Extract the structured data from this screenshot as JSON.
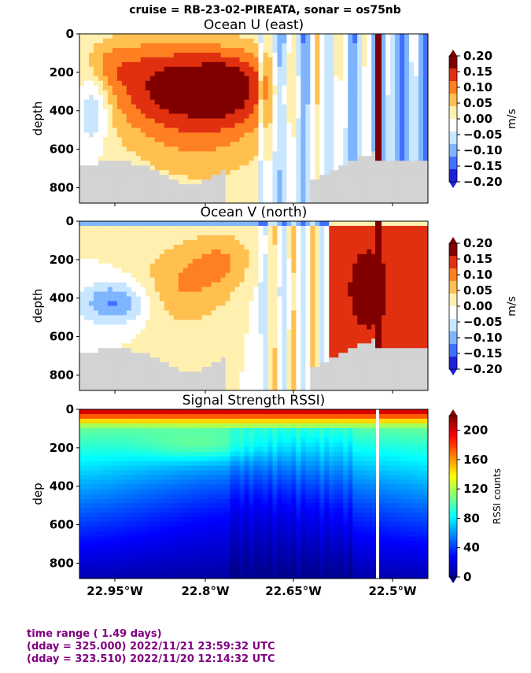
{
  "suptitle": "cruise = RB-23-02-PIREATA,  sonar = os75nb",
  "footer": {
    "line1": "time range ( 1.49 days)",
    "line2": "(dday = 325.000) 2022/11/21 23:59:32 UTC",
    "line3": "(dday = 323.510) 2022/11/20 12:14:32 UTC"
  },
  "colors": {
    "jet": [
      "#00008f",
      "#0000ff",
      "#0080ff",
      "#00ffff",
      "#80ff80",
      "#ffff00",
      "#ff8000",
      "#ff0000",
      "#800000"
    ],
    "diverging": [
      "#2020d8",
      "#4070ff",
      "#7fb4ff",
      "#c8e6ff",
      "#ffffff",
      "#fff0b0",
      "#ffc050",
      "#ff8020",
      "#e03010",
      "#800000"
    ],
    "bathymetry": "#d3d3d3",
    "footer_text": "#800080"
  },
  "chart_data": [
    {
      "type": "heatmap",
      "title": "Ocean U (east)",
      "ylabel": "depth",
      "ylim": [
        880,
        0
      ],
      "yticks": [
        "0",
        "200",
        "400",
        "600",
        "800"
      ],
      "xticks": [
        "22.95°W",
        "22.8°W",
        "22.65°W",
        "22.5°W"
      ],
      "colorbar_label": "m/s",
      "colorbar_ticks": [
        "0.20",
        "0.15",
        "0.10",
        "0.05",
        "0.00",
        "−0.05",
        "−0.10",
        "−0.15",
        "−0.20"
      ],
      "vmin": -0.2,
      "vmax": 0.2,
      "colormap": "diverging"
    },
    {
      "type": "heatmap",
      "title": "Ocean V (north)",
      "ylabel": "depth",
      "ylim": [
        880,
        0
      ],
      "yticks": [
        "0",
        "200",
        "400",
        "600",
        "800"
      ],
      "xticks": [
        "22.95°W",
        "22.8°W",
        "22.65°W",
        "22.5°W"
      ],
      "colorbar_label": "m/s",
      "colorbar_ticks": [
        "0.20",
        "0.15",
        "0.10",
        "0.05",
        "0.00",
        "−0.05",
        "−0.10",
        "−0.15",
        "−0.20"
      ],
      "vmin": -0.2,
      "vmax": 0.2,
      "colormap": "diverging"
    },
    {
      "type": "heatmap",
      "title": "Signal Strength RSSI)",
      "ylabel": "dep",
      "ylim": [
        880,
        0
      ],
      "yticks": [
        "0",
        "200",
        "400",
        "600",
        "800"
      ],
      "xticks": [
        "22.95°W",
        "22.8°W",
        "22.65°W",
        "22.5°W"
      ],
      "colorbar_label": "RSSI counts",
      "colorbar_ticks": [
        "200",
        "160",
        "120",
        "80",
        "40",
        "0"
      ],
      "vmin": 0,
      "vmax": 220,
      "colormap": "jet"
    }
  ]
}
